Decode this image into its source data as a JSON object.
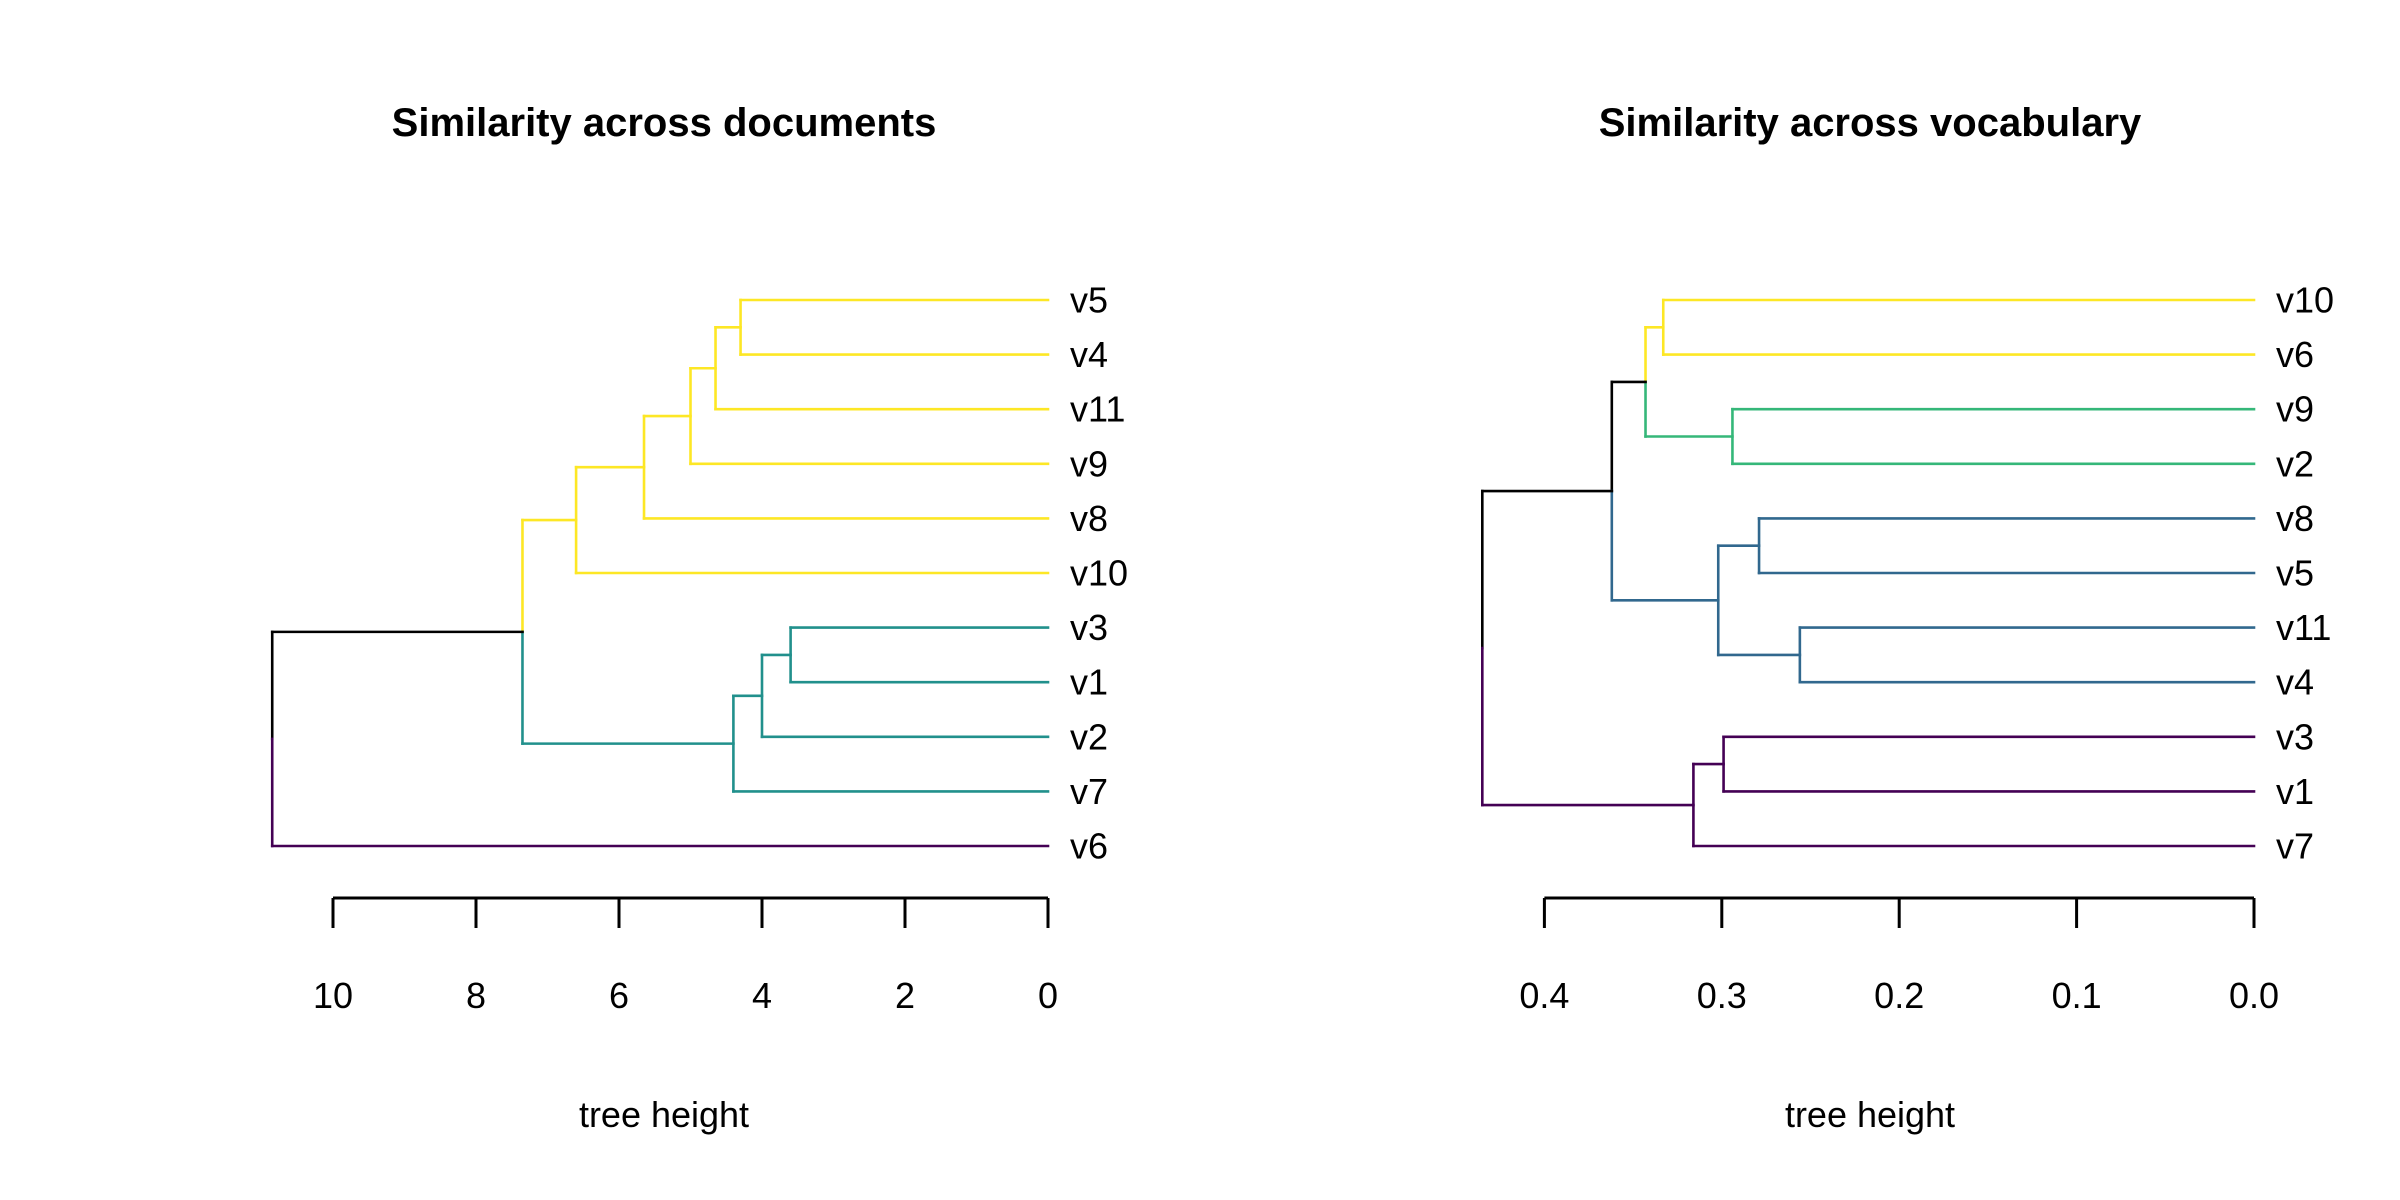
{
  "chart_data": [
    {
      "type": "dendrogram",
      "title": "Similarity across documents",
      "xlabel": "tree height",
      "ylabel": "",
      "axis": {
        "range": [
          11.0,
          0
        ],
        "reversed": true,
        "ticks": [
          10,
          8,
          6,
          4,
          2,
          0
        ],
        "tick_labels": [
          "10",
          "8",
          "6",
          "4",
          "2",
          "0"
        ]
      },
      "leaf_order": [
        "v5",
        "v4",
        "v11",
        "v9",
        "v8",
        "v10",
        "v3",
        "v1",
        "v2",
        "v7",
        "v6"
      ],
      "colors": {
        "yellow": "#FDE725",
        "teal": "#21908C",
        "purple": "#440154",
        "black": "#000000"
      },
      "merges": [
        {
          "id": "A",
          "height": 4.3,
          "children": [
            "v5",
            "v4"
          ],
          "color": "#FDE725"
        },
        {
          "id": "B",
          "height": 4.65,
          "children": [
            "A",
            "v11"
          ],
          "color": "#FDE725"
        },
        {
          "id": "C",
          "height": 5.0,
          "children": [
            "B",
            "v9"
          ],
          "color": "#FDE725"
        },
        {
          "id": "D",
          "height": 5.65,
          "children": [
            "C",
            "v8"
          ],
          "color": "#FDE725"
        },
        {
          "id": "E",
          "height": 6.6,
          "children": [
            "D",
            "v10"
          ],
          "color": "#FDE725"
        },
        {
          "id": "F",
          "height": 3.6,
          "children": [
            "v3",
            "v1"
          ],
          "color": "#21908C"
        },
        {
          "id": "G",
          "height": 4.0,
          "children": [
            "F",
            "v2"
          ],
          "color": "#21908C"
        },
        {
          "id": "H",
          "height": 4.4,
          "children": [
            "G",
            "v7"
          ],
          "color": "#21908C"
        },
        {
          "id": "I",
          "height": 7.35,
          "children": [
            "E",
            "H"
          ],
          "color": "#FDE725",
          "lower_color": "#21908C"
        },
        {
          "id": "J",
          "height": 10.85,
          "children": [
            "I",
            "v6"
          ],
          "color": "#000000",
          "lower_color": "#440154"
        }
      ]
    },
    {
      "type": "dendrogram",
      "title": "Similarity across vocabulary",
      "xlabel": "tree height",
      "ylabel": "",
      "axis": {
        "range": [
          0.44,
          0
        ],
        "reversed": true,
        "ticks": [
          0.4,
          0.3,
          0.2,
          0.1,
          0.0
        ],
        "tick_labels": [
          "0.4",
          "0.3",
          "0.2",
          "0.1",
          "0.0"
        ]
      },
      "leaf_order": [
        "v10",
        "v6",
        "v9",
        "v2",
        "v8",
        "v5",
        "v11",
        "v4",
        "v3",
        "v1",
        "v7"
      ],
      "colors": {
        "yellow": "#FDE725",
        "green": "#35B779",
        "blue": "#31688E",
        "purple": "#440154",
        "black": "#000000"
      },
      "merges": [
        {
          "id": "A",
          "height": 0.333,
          "children": [
            "v10",
            "v6"
          ],
          "color": "#FDE725"
        },
        {
          "id": "B",
          "height": 0.294,
          "children": [
            "v9",
            "v2"
          ],
          "color": "#35B779"
        },
        {
          "id": "C",
          "height": 0.343,
          "children": [
            "A",
            "B"
          ],
          "color": "#FDE725",
          "lower_color": "#35B779"
        },
        {
          "id": "D",
          "height": 0.279,
          "children": [
            "v8",
            "v5"
          ],
          "color": "#31688E"
        },
        {
          "id": "E",
          "height": 0.256,
          "children": [
            "v11",
            "v4"
          ],
          "color": "#31688E"
        },
        {
          "id": "F",
          "height": 0.302,
          "children": [
            "D",
            "E"
          ],
          "color": "#31688E"
        },
        {
          "id": "G",
          "height": 0.362,
          "children": [
            "C",
            "F"
          ],
          "color": "#000000",
          "lower_color": "#31688E"
        },
        {
          "id": "H",
          "height": 0.299,
          "children": [
            "v3",
            "v1"
          ],
          "color": "#440154"
        },
        {
          "id": "I",
          "height": 0.316,
          "children": [
            "H",
            "v7"
          ],
          "color": "#440154"
        },
        {
          "id": "J",
          "height": 0.435,
          "children": [
            "G",
            "I"
          ],
          "color": "#000000",
          "lower_color": "#440154"
        }
      ]
    }
  ]
}
